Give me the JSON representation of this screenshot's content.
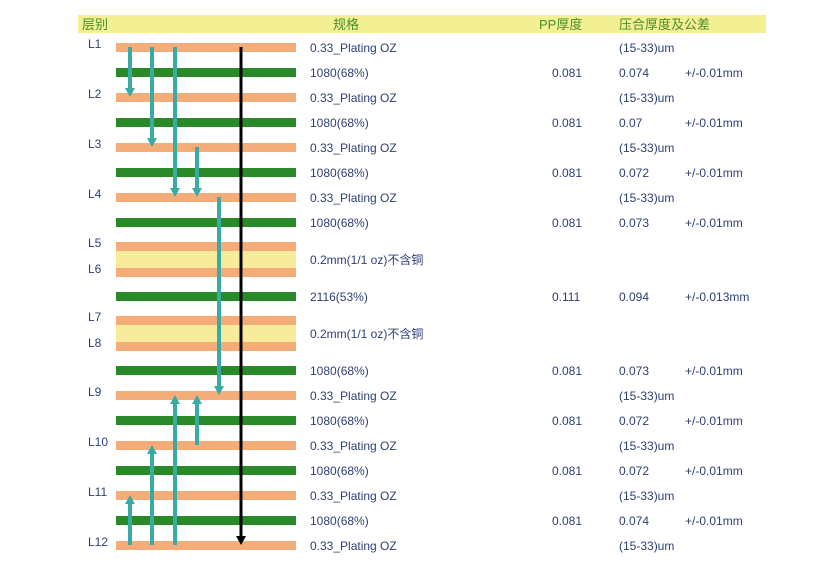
{
  "header": {
    "layer": "层别",
    "spec": "规格",
    "pp": "PP厚度",
    "press": "压合厚度及公差"
  },
  "colors": {
    "header_bg": "#f3ef93",
    "header_text": "#4a8e2c",
    "copper": "#f4ad78",
    "prepreg": "#2a8a2a",
    "core_fill": "#f7ec9c",
    "via": "#3aaba4",
    "through_hole": "#000000",
    "text": "#2c3f77"
  },
  "layers": [
    "L1",
    "L2",
    "L3",
    "L4",
    "L5",
    "L6",
    "L7",
    "L8",
    "L9",
    "L10",
    "L11",
    "L12"
  ],
  "rows": [
    {
      "kind": "copper",
      "spec": "0.33_Plating OZ",
      "pp": "",
      "press": "(15-33)um",
      "tol": ""
    },
    {
      "kind": "prepreg",
      "spec": "1080(68%)",
      "pp": "0.081",
      "press": "0.074",
      "tol": "+/-0.01mm"
    },
    {
      "kind": "copper",
      "spec": "0.33_Plating OZ",
      "pp": "",
      "press": "(15-33)um",
      "tol": ""
    },
    {
      "kind": "prepreg",
      "spec": "1080(68%)",
      "pp": "0.081",
      "press": "0.07",
      "tol": "+/-0.01mm"
    },
    {
      "kind": "copper",
      "spec": "0.33_Plating OZ",
      "pp": "",
      "press": "(15-33)um",
      "tol": ""
    },
    {
      "kind": "prepreg",
      "spec": "1080(68%)",
      "pp": "0.081",
      "press": "0.072",
      "tol": "+/-0.01mm"
    },
    {
      "kind": "copper",
      "spec": "0.33_Plating OZ",
      "pp": "",
      "press": "(15-33)um",
      "tol": ""
    },
    {
      "kind": "prepreg",
      "spec": "1080(68%)",
      "pp": "0.081",
      "press": "0.073",
      "tol": "+/-0.01mm"
    },
    {
      "kind": "core",
      "spec": "0.2mm(1/1 oz)不含铜",
      "pp": "",
      "press": "",
      "tol": ""
    },
    {
      "kind": "prepreg",
      "spec": "2116(53%)",
      "pp": "0.111",
      "press": "0.094",
      "tol": "+/-0.013mm"
    },
    {
      "kind": "core",
      "spec": "0.2mm(1/1 oz)不含铜",
      "pp": "",
      "press": "",
      "tol": ""
    },
    {
      "kind": "prepreg",
      "spec": "1080(68%)",
      "pp": "0.081",
      "press": "0.073",
      "tol": "+/-0.01mm"
    },
    {
      "kind": "copper",
      "spec": "0.33_Plating OZ",
      "pp": "",
      "press": "(15-33)um",
      "tol": ""
    },
    {
      "kind": "prepreg",
      "spec": "1080(68%)",
      "pp": "0.081",
      "press": "0.072",
      "tol": "+/-0.01mm"
    },
    {
      "kind": "copper",
      "spec": "0.33_Plating OZ",
      "pp": "",
      "press": "(15-33)um",
      "tol": ""
    },
    {
      "kind": "prepreg",
      "spec": "1080(68%)",
      "pp": "0.081",
      "press": "0.072",
      "tol": "+/-0.01mm"
    },
    {
      "kind": "copper",
      "spec": "0.33_Plating OZ",
      "pp": "",
      "press": "(15-33)um",
      "tol": ""
    },
    {
      "kind": "prepreg",
      "spec": "1080(68%)",
      "pp": "0.081",
      "press": "0.074",
      "tol": "+/-0.01mm"
    },
    {
      "kind": "copper",
      "spec": "0.33_Plating OZ",
      "pp": "",
      "press": "(15-33)um",
      "tol": ""
    }
  ],
  "vias": [
    {
      "from": "L1",
      "to": "L2"
    },
    {
      "from": "L1",
      "to": "L3"
    },
    {
      "from": "L1",
      "to": "L4"
    },
    {
      "from": "L3",
      "to": "L4"
    },
    {
      "from": "L4",
      "to": "L9"
    },
    {
      "from": "L12",
      "to": "L9"
    },
    {
      "from": "L10",
      "to": "L9"
    },
    {
      "from": "L12",
      "to": "L10"
    },
    {
      "from": "L12",
      "to": "L11"
    },
    {
      "from": "L1",
      "to": "L12",
      "through": true
    }
  ]
}
